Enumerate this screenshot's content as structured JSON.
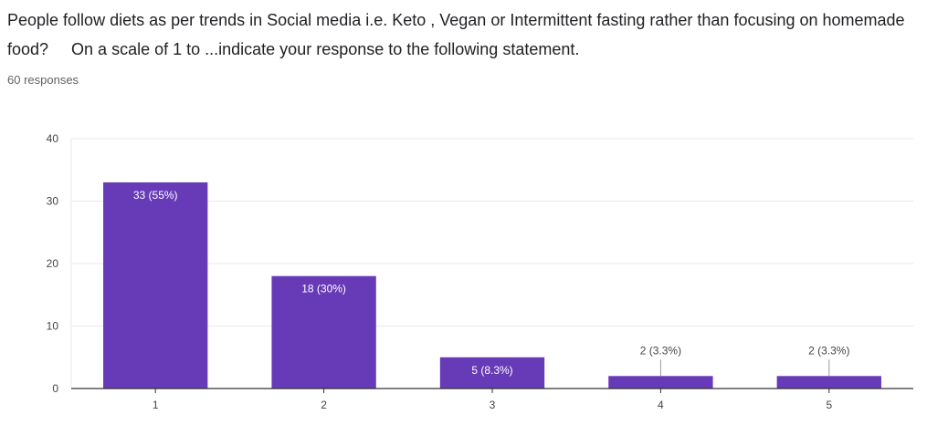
{
  "question": {
    "title": "People follow diets as per trends in Social media i.e. Keto , Vegan or Intermittent fasting rather than focusing on homemade food?     On a scale of 1 to ...indicate your response to the following statement.",
    "responses_label": "60 responses"
  },
  "chart_data": {
    "type": "bar",
    "title": "",
    "xlabel": "",
    "ylabel": "",
    "categories": [
      "1",
      "2",
      "3",
      "4",
      "5"
    ],
    "values": [
      33,
      18,
      5,
      2,
      2
    ],
    "data_labels": [
      "33 (55%)",
      "18 (30%)",
      "5 (8.3%)",
      "2 (3.3%)",
      "2 (3.3%)"
    ],
    "ylim": [
      0,
      40
    ],
    "yticks": [
      0,
      10,
      20,
      30,
      40
    ],
    "grid": true,
    "legend": "none",
    "colors": {
      "bar": "#673ab7",
      "label_inside": "#ffffff",
      "label_outside": "#444444",
      "grid": "#e8e8e8",
      "axis": "#333333"
    }
  }
}
